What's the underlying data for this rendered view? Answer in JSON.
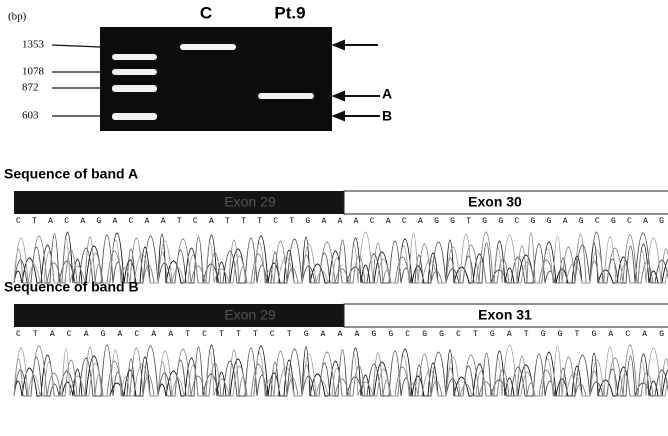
{
  "gel": {
    "unit": "(bp)",
    "lanes": [
      "C",
      "Pt.9"
    ],
    "markers": [
      "1353",
      "1078",
      "872",
      "603"
    ],
    "band_labels": [
      "A",
      "B"
    ]
  },
  "sequences": [
    {
      "title": "Sequence of band A",
      "left_exon": "Exon 29",
      "right_exon": "Exon 30",
      "bases": "C T A C A G A C A A T C A T T T C T G A A A C A C A G G T G G C G G A G C G C A G"
    },
    {
      "title": "Sequence of band B",
      "left_exon": "Exon 29",
      "right_exon": "Exon 31",
      "bases": "C T A C A G A C A A T C T T T C T G A A A G G C G G C T G A T G G T G A C A G"
    }
  ]
}
